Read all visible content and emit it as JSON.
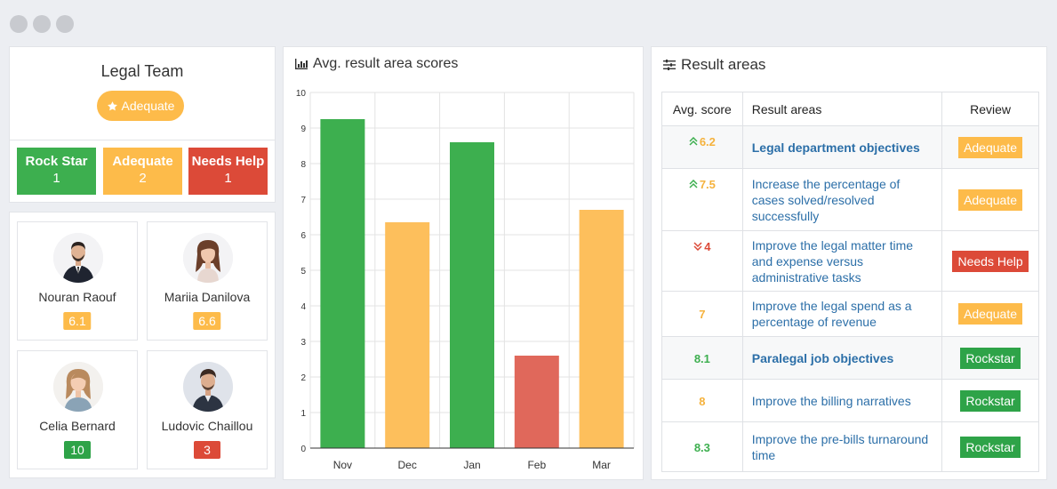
{
  "colors": {
    "green": "#3daf4f",
    "yellow": "#fdbf5c",
    "red": "#e0685b",
    "badge_green": "#2ea348",
    "badge_yellow": "#fdbb4a",
    "badge_red": "#dc4a38",
    "score_green": "#3daf4f",
    "score_yellow": "#f5b23d",
    "score_red": "#dc4a38",
    "link": "#2c6fa8"
  },
  "team": {
    "title": "Legal Team",
    "badge_icon": "star-icon",
    "badge_label": "Adequate",
    "stats": [
      {
        "label": "Rock Star",
        "count": "1",
        "color": "#3daf4f"
      },
      {
        "label": "Adequate",
        "count": "2",
        "color": "#fdbb4a"
      },
      {
        "label": "Needs Help",
        "count": "1",
        "color": "#dc4a38"
      }
    ]
  },
  "people": [
    {
      "name": "Nouran Raouf",
      "score": "6.1",
      "color": "#fdbb4a"
    },
    {
      "name": "Mariia Danilova",
      "score": "6.6",
      "color": "#fdbb4a"
    },
    {
      "name": "Celia Bernard",
      "score": "10",
      "color": "#2ea348"
    },
    {
      "name": "Ludovic Chaillou",
      "score": "3",
      "color": "#dc4a38"
    }
  ],
  "chart_header": {
    "icon": "bar-chart-icon",
    "title": "Avg. result area scores"
  },
  "chart_data": {
    "type": "bar",
    "title": "Avg. result area scores",
    "categories": [
      "Nov",
      "Dec",
      "Jan",
      "Feb",
      "Mar"
    ],
    "values": [
      9.25,
      6.35,
      8.6,
      2.6,
      6.7
    ],
    "colors": [
      "#3daf4f",
      "#fdbf5c",
      "#3daf4f",
      "#e0685b",
      "#fdbf5c"
    ],
    "ylim": [
      0,
      10
    ],
    "yticks": [
      0,
      1,
      2,
      3,
      4,
      5,
      6,
      7,
      8,
      9,
      10
    ],
    "grid": true,
    "xlabel": "",
    "ylabel": ""
  },
  "results": {
    "icon": "sliders-icon",
    "title": "Result areas",
    "headers": {
      "score": "Avg. score",
      "area": "Result areas",
      "review": "Review"
    },
    "rows": [
      {
        "trend": "up",
        "score": "6.2",
        "score_color": "#f5b23d",
        "area": "Legal department objectives",
        "objective": true,
        "review": "Adequate",
        "review_color": "#fdbb4a"
      },
      {
        "trend": "up",
        "score": "7.5",
        "score_color": "#f5b23d",
        "area": "Increase the percentage of cases solved/resolved successfully",
        "objective": false,
        "review": "Adequate",
        "review_color": "#fdbb4a"
      },
      {
        "trend": "down",
        "score": "4",
        "score_color": "#dc4a38",
        "area": "Improve the legal matter time and expense versus administrative tasks",
        "objective": false,
        "review": "Needs Help",
        "review_color": "#dc4a38"
      },
      {
        "trend": "",
        "score": "7",
        "score_color": "#f5b23d",
        "area": "Improve the legal spend as a percentage of revenue",
        "objective": false,
        "review": "Adequate",
        "review_color": "#fdbb4a"
      },
      {
        "trend": "",
        "score": "8.1",
        "score_color": "#3daf4f",
        "area": "Paralegal job objectives",
        "objective": true,
        "review": "Rockstar",
        "review_color": "#2ea348"
      },
      {
        "trend": "",
        "score": "8",
        "score_color": "#f5b23d",
        "area": "Improve the billing narratives",
        "objective": false,
        "review": "Rockstar",
        "review_color": "#2ea348"
      },
      {
        "trend": "",
        "score": "8.3",
        "score_color": "#3daf4f",
        "area": "Improve the pre-bills turnaround time",
        "objective": false,
        "review": "Rockstar",
        "review_color": "#2ea348"
      }
    ]
  }
}
